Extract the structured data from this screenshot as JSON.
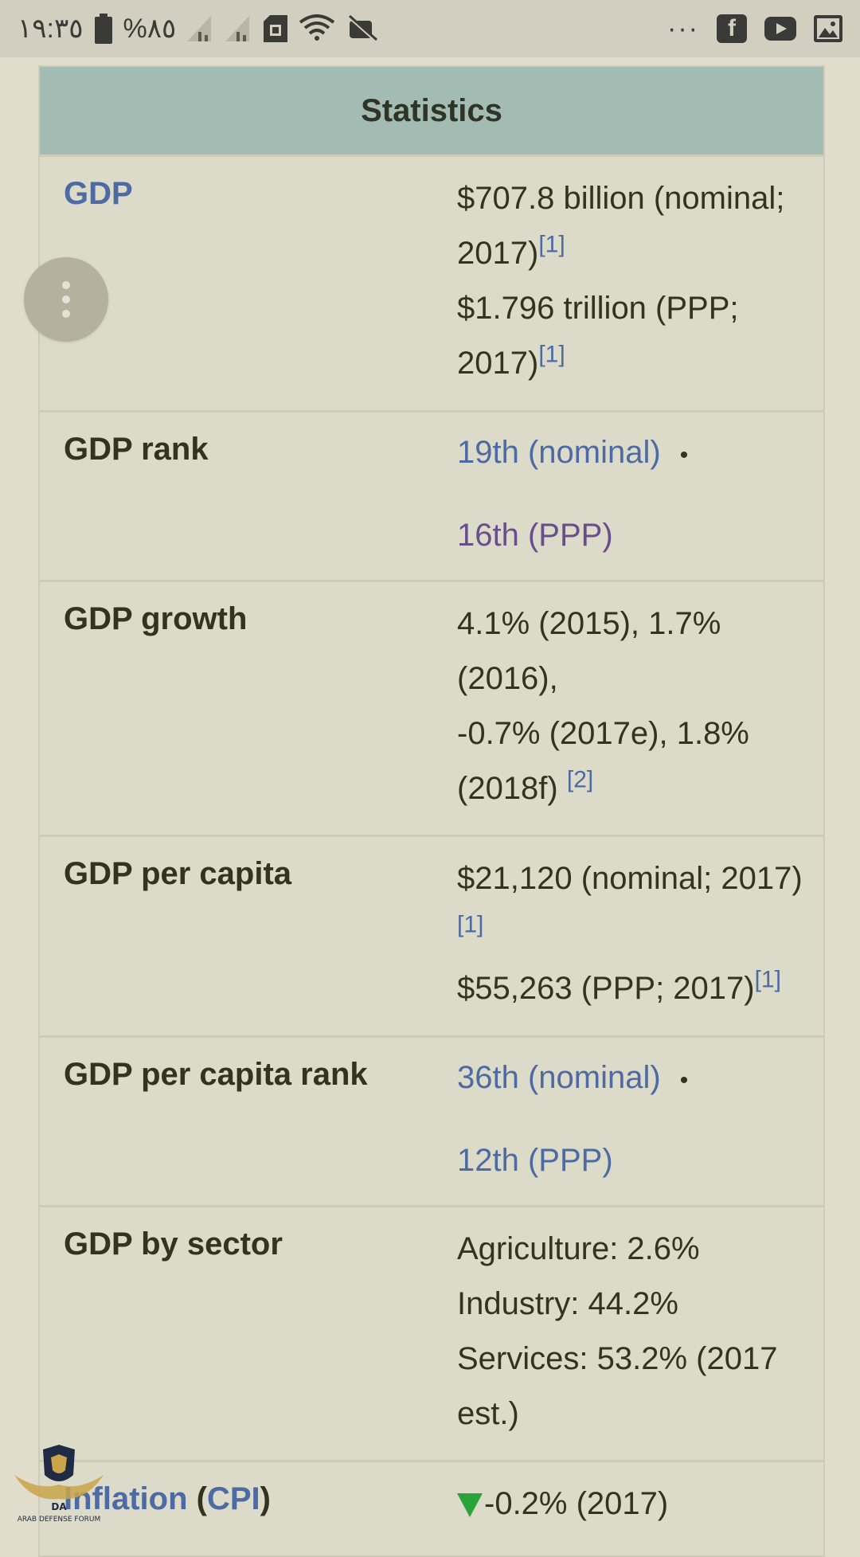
{
  "status_bar": {
    "time": "١٩:٣٥",
    "battery": "%٨٥",
    "icons": [
      "battery-icon",
      "signal-icon",
      "signal-icon",
      "sim-icon",
      "wifi-icon",
      "mute-icon"
    ],
    "right_icons": [
      "more-icon",
      "facebook-icon",
      "youtube-icon",
      "image-icon"
    ],
    "more": "···",
    "facebook": "f"
  },
  "infobox": {
    "header": "Statistics",
    "rows": [
      {
        "label": "GDP",
        "v1": "$707.8 billion (nominal; 2017)",
        "s1": "[1]",
        "v2": "$1.796 trillion (PPP; 2017)",
        "s2": "[1]"
      },
      {
        "label": "GDP rank",
        "v1": "19th (nominal)",
        "bullet": "•",
        "v2": "16th (PPP)"
      },
      {
        "label": "GDP growth",
        "v1": "4.1% (2015), 1.7% (2016),",
        "v2": "-0.7% (2017e), 1.8% (2018f)",
        "s2": "[2]"
      },
      {
        "label": "GDP per capita",
        "v1": "$21,120 (nominal; 2017)",
        "s1": "[1]",
        "v2": "$55,263 (PPP; 2017)",
        "s2": "[1]"
      },
      {
        "label": "GDP per capita rank",
        "v1": "36th (nominal)",
        "bullet": "•",
        "v2": "12th (PPP)"
      },
      {
        "label": "GDP by sector",
        "v1": "Agriculture: 2.6%",
        "v2": "Industry: 44.2%",
        "v3": "Services: 53.2% (2017 est.)"
      },
      {
        "label_a": "Inflation",
        "label_b": "(",
        "label_c": "CPI",
        "label_d": ")",
        "v1": "-0.2% (2017)"
      }
    ]
  },
  "watermark": {
    "text": "ARAB DEFENSE FORUM",
    "abbr": "DA"
  }
}
